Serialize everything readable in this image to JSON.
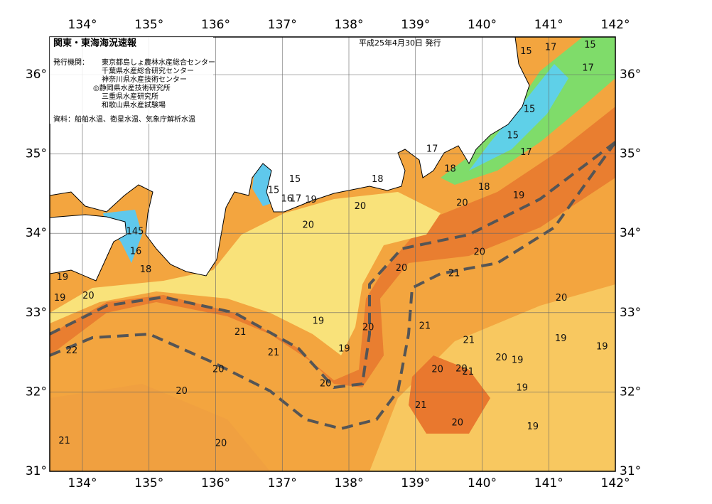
{
  "header": {
    "title": "関東・東海海況速報",
    "date": "平成25年4月30日 発行",
    "agencies_label": "発行機関：",
    "agencies": [
      "東京都島しょ農林水産総合センター",
      "千葉県水産総合研究センター",
      "神奈川県水産技術センター",
      "◎静岡県水産技術研究所",
      "三重県水産研究所",
      "和歌山県水産試験場"
    ],
    "source": "資料：船舶水温、衛星水温、気象庁解析水温"
  },
  "map": {
    "lon_ticks": [
      {
        "value": 134,
        "label": "134°"
      },
      {
        "value": 135,
        "label": "135°"
      },
      {
        "value": 136,
        "label": "136°"
      },
      {
        "value": 137,
        "label": "137°"
      },
      {
        "value": 138,
        "label": "138°"
      },
      {
        "value": 139,
        "label": "139°"
      },
      {
        "value": 140,
        "label": "140°"
      },
      {
        "value": 141,
        "label": "141°"
      },
      {
        "value": 142,
        "label": "142°"
      }
    ],
    "lat_ticks": [
      {
        "value": 31,
        "label": "31°"
      },
      {
        "value": 32,
        "label": "32°"
      },
      {
        "value": 33,
        "label": "33°"
      },
      {
        "value": 34,
        "label": "34°"
      },
      {
        "value": 35,
        "label": "35°"
      },
      {
        "value": 36,
        "label": "36°"
      }
    ],
    "contour_labels": [
      {
        "label": "15",
        "lon": 140.66,
        "lat": 36.29
      },
      {
        "label": "17",
        "lon": 141.03,
        "lat": 36.34
      },
      {
        "label": "15",
        "lon": 141.62,
        "lat": 36.37
      },
      {
        "label": "17",
        "lon": 141.59,
        "lat": 36.08
      },
      {
        "label": "15",
        "lon": 140.71,
        "lat": 35.56
      },
      {
        "label": "15",
        "lon": 140.46,
        "lat": 35.23
      },
      {
        "label": "17",
        "lon": 140.66,
        "lat": 35.02
      },
      {
        "label": "17",
        "lon": 139.25,
        "lat": 35.06
      },
      {
        "label": "18",
        "lon": 139.52,
        "lat": 34.81
      },
      {
        "label": "18",
        "lon": 138.43,
        "lat": 34.68
      },
      {
        "label": "18",
        "lon": 140.03,
        "lat": 34.58
      },
      {
        "label": "19",
        "lon": 140.55,
        "lat": 34.47
      },
      {
        "label": "20",
        "lon": 139.7,
        "lat": 34.38
      },
      {
        "label": "15",
        "lon": 136.87,
        "lat": 34.54
      },
      {
        "label": "15",
        "lon": 137.19,
        "lat": 34.68
      },
      {
        "label": "16",
        "lon": 137.07,
        "lat": 34.43
      },
      {
        "label": "17",
        "lon": 137.2,
        "lat": 34.43
      },
      {
        "label": "19",
        "lon": 137.43,
        "lat": 34.42
      },
      {
        "label": "20",
        "lon": 138.17,
        "lat": 34.34
      },
      {
        "label": "20",
        "lon": 137.39,
        "lat": 34.1
      },
      {
        "label": "145",
        "lon": 134.79,
        "lat": 34.02
      },
      {
        "label": "16",
        "lon": 134.8,
        "lat": 33.77
      },
      {
        "label": "18",
        "lon": 134.95,
        "lat": 33.54
      },
      {
        "label": "19",
        "lon": 133.7,
        "lat": 33.44
      },
      {
        "label": "19",
        "lon": 133.66,
        "lat": 33.18
      },
      {
        "label": "20",
        "lon": 134.09,
        "lat": 33.21
      },
      {
        "label": "20",
        "lon": 139.96,
        "lat": 33.76
      },
      {
        "label": "20",
        "lon": 138.79,
        "lat": 33.56
      },
      {
        "label": "21",
        "lon": 139.58,
        "lat": 33.49
      },
      {
        "label": "20",
        "lon": 141.19,
        "lat": 33.18
      },
      {
        "label": "19",
        "lon": 137.54,
        "lat": 32.89
      },
      {
        "label": "21",
        "lon": 136.37,
        "lat": 32.75
      },
      {
        "label": "20",
        "lon": 138.29,
        "lat": 32.81
      },
      {
        "label": "21",
        "lon": 139.14,
        "lat": 32.83
      },
      {
        "label": "21",
        "lon": 139.8,
        "lat": 32.65
      },
      {
        "label": "19",
        "lon": 141.18,
        "lat": 32.67
      },
      {
        "label": "19",
        "lon": 141.8,
        "lat": 32.57
      },
      {
        "label": "22",
        "lon": 133.84,
        "lat": 32.52
      },
      {
        "label": "21",
        "lon": 136.87,
        "lat": 32.49
      },
      {
        "label": "19",
        "lon": 137.93,
        "lat": 32.54
      },
      {
        "label": "20",
        "lon": 140.29,
        "lat": 32.43
      },
      {
        "label": "19",
        "lon": 140.53,
        "lat": 32.4
      },
      {
        "label": "20",
        "lon": 136.04,
        "lat": 32.28
      },
      {
        "label": "20",
        "lon": 139.33,
        "lat": 32.28
      },
      {
        "label": "20",
        "lon": 139.69,
        "lat": 32.29
      },
      {
        "label": "21",
        "lon": 139.79,
        "lat": 32.25
      },
      {
        "label": "20",
        "lon": 137.65,
        "lat": 32.1
      },
      {
        "label": "20",
        "lon": 135.49,
        "lat": 32.01
      },
      {
        "label": "19",
        "lon": 140.6,
        "lat": 32.05
      },
      {
        "label": "21",
        "lon": 139.08,
        "lat": 31.83
      },
      {
        "label": "20",
        "lon": 139.63,
        "lat": 31.61
      },
      {
        "label": "19",
        "lon": 140.76,
        "lat": 31.56
      },
      {
        "label": "20",
        "lon": 136.08,
        "lat": 31.35
      },
      {
        "label": "21",
        "lon": 133.73,
        "lat": 31.38
      }
    ]
  }
}
